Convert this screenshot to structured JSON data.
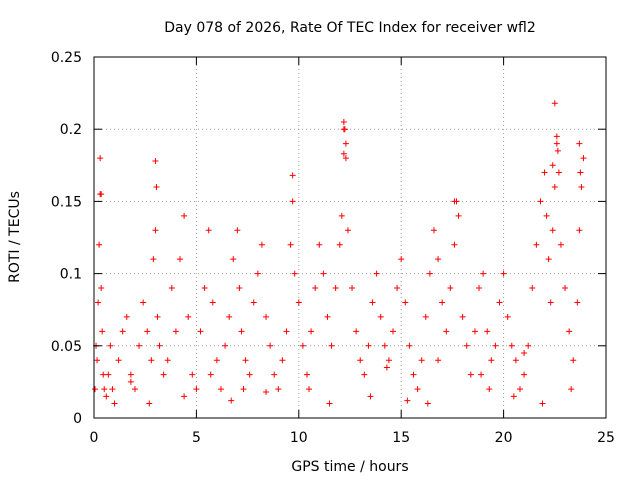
{
  "chart_data": {
    "type": "scatter",
    "title": "Day 078 of 2026, Rate Of TEC Index for receiver wfl2",
    "xlabel": "GPS time / hours",
    "ylabel": "ROTI / TECUs",
    "xlim": [
      0,
      25
    ],
    "ylim": [
      0,
      0.25
    ],
    "x_ticks": [
      0,
      5,
      10,
      15,
      20,
      25
    ],
    "x_tick_labels": [
      "0",
      "5",
      "10",
      "15",
      "20",
      "25"
    ],
    "y_ticks": [
      0,
      0.05,
      0.1,
      0.15,
      0.2,
      0.25
    ],
    "y_tick_labels": [
      "0",
      "0.05",
      "0.1",
      "0.15",
      "0.2",
      "0.25"
    ],
    "grid": true,
    "marker": "+",
    "color": "#ff0000",
    "series": [
      {
        "name": "ROTI",
        "x": [
          0.05,
          0.1,
          0.15,
          0.2,
          0.25,
          0.3,
          0.35,
          0.4,
          0.45,
          0.5,
          0.6,
          0.7,
          0.8,
          0.9,
          1.0,
          1.2,
          1.4,
          1.6,
          1.8,
          2.0,
          2.2,
          2.4,
          2.6,
          2.8,
          2.9,
          3.0,
          3.1,
          3.2,
          3.4,
          3.6,
          3.8,
          4.0,
          4.2,
          4.4,
          4.6,
          4.8,
          5.0,
          5.2,
          5.4,
          5.6,
          5.8,
          6.0,
          6.2,
          6.4,
          6.6,
          6.8,
          7.0,
          7.1,
          7.2,
          7.4,
          7.6,
          7.8,
          8.0,
          8.2,
          8.4,
          8.6,
          8.8,
          9.0,
          9.2,
          9.4,
          9.6,
          9.7,
          9.8,
          10.0,
          10.2,
          10.4,
          10.6,
          10.8,
          11.0,
          11.2,
          11.4,
          11.6,
          11.8,
          12.0,
          12.1,
          12.2,
          12.3,
          12.4,
          12.6,
          12.8,
          13.0,
          13.2,
          13.4,
          13.6,
          13.8,
          14.0,
          14.2,
          14.4,
          14.6,
          14.8,
          15.0,
          15.2,
          15.4,
          15.6,
          15.8,
          16.0,
          16.2,
          16.4,
          16.6,
          16.8,
          17.0,
          17.2,
          17.4,
          17.6,
          17.7,
          17.8,
          18.0,
          18.2,
          18.4,
          18.6,
          18.8,
          19.0,
          19.2,
          19.4,
          19.6,
          19.8,
          20.0,
          20.2,
          20.4,
          20.6,
          20.8,
          21.0,
          21.2,
          21.4,
          21.6,
          21.8,
          22.0,
          22.1,
          22.2,
          22.3,
          22.4,
          22.5,
          22.6,
          22.7,
          22.8,
          23.0,
          23.2,
          23.4,
          23.6,
          23.7,
          23.8,
          23.9,
          0.3,
          0.35,
          3.0,
          3.05,
          9.7,
          12.2,
          12.25,
          12.3,
          22.5,
          22.6,
          22.65,
          23.7,
          23.75,
          17.6,
          12.2,
          22.4,
          1.8,
          5.7,
          7.3,
          14.3,
          16.8,
          18.9,
          21.0,
          2.7,
          4.4,
          6.7,
          8.4,
          10.5,
          11.5,
          13.5,
          15.3,
          16.3,
          19.3,
          20.5,
          21.9,
          23.3
        ],
        "y": [
          0.02,
          0.05,
          0.04,
          0.08,
          0.12,
          0.155,
          0.09,
          0.06,
          0.03,
          0.02,
          0.015,
          0.03,
          0.05,
          0.02,
          0.01,
          0.04,
          0.06,
          0.07,
          0.03,
          0.02,
          0.05,
          0.08,
          0.06,
          0.04,
          0.11,
          0.13,
          0.07,
          0.05,
          0.03,
          0.04,
          0.09,
          0.06,
          0.11,
          0.14,
          0.07,
          0.03,
          0.02,
          0.06,
          0.09,
          0.13,
          0.08,
          0.04,
          0.02,
          0.05,
          0.07,
          0.11,
          0.13,
          0.09,
          0.06,
          0.04,
          0.03,
          0.08,
          0.1,
          0.12,
          0.07,
          0.05,
          0.03,
          0.02,
          0.04,
          0.06,
          0.12,
          0.15,
          0.1,
          0.08,
          0.05,
          0.03,
          0.06,
          0.09,
          0.12,
          0.1,
          0.07,
          0.05,
          0.09,
          0.12,
          0.14,
          0.2,
          0.18,
          0.13,
          0.09,
          0.06,
          0.04,
          0.03,
          0.05,
          0.08,
          0.1,
          0.07,
          0.05,
          0.04,
          0.06,
          0.09,
          0.11,
          0.08,
          0.05,
          0.03,
          0.02,
          0.04,
          0.07,
          0.1,
          0.13,
          0.11,
          0.08,
          0.06,
          0.09,
          0.12,
          0.15,
          0.14,
          0.07,
          0.05,
          0.03,
          0.06,
          0.09,
          0.1,
          0.06,
          0.04,
          0.05,
          0.08,
          0.1,
          0.07,
          0.05,
          0.04,
          0.02,
          0.03,
          0.05,
          0.09,
          0.12,
          0.15,
          0.17,
          0.14,
          0.11,
          0.08,
          0.13,
          0.16,
          0.19,
          0.17,
          0.12,
          0.09,
          0.06,
          0.04,
          0.08,
          0.13,
          0.16,
          0.18,
          0.18,
          0.155,
          0.178,
          0.16,
          0.168,
          0.205,
          0.2,
          0.19,
          0.218,
          0.195,
          0.185,
          0.19,
          0.17,
          0.15,
          0.183,
          0.175,
          0.025,
          0.03,
          0.02,
          0.035,
          0.04,
          0.03,
          0.045,
          0.01,
          0.015,
          0.012,
          0.018,
          0.02,
          0.01,
          0.015,
          0.012,
          0.01,
          0.02,
          0.015,
          0.01,
          0.02
        ]
      }
    ]
  }
}
